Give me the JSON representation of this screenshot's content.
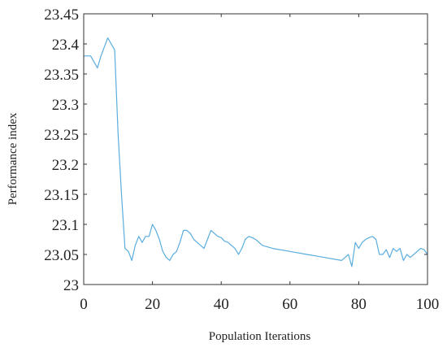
{
  "chart_data": {
    "type": "line",
    "title": "",
    "xlabel": "Population Iterations",
    "ylabel": "Performance index",
    "xlim": [
      0,
      100
    ],
    "ylim": [
      23,
      23.45
    ],
    "xticks": [
      0,
      20,
      40,
      60,
      80,
      100
    ],
    "yticks": [
      23,
      23.05,
      23.1,
      23.15,
      23.2,
      23.25,
      23.3,
      23.35,
      23.4,
      23.45
    ],
    "xtick_labels": [
      "0",
      "20",
      "40",
      "60",
      "80",
      "100"
    ],
    "ytick_labels": [
      "23",
      "23.05",
      "23.1",
      "23.15",
      "23.2",
      "23.25",
      "23.3",
      "23.35",
      "23.4",
      "23.45"
    ],
    "grid": false,
    "legend": false,
    "colors": {
      "line": "#5aaddf",
      "axis": "#333333"
    },
    "series": [
      {
        "x": [
          0,
          1,
          2,
          3,
          4,
          5,
          6,
          7,
          8,
          9,
          10,
          11,
          12,
          13,
          14,
          15,
          16,
          17,
          18,
          19,
          20,
          21,
          22,
          23,
          24,
          25,
          26,
          27,
          28,
          29,
          30,
          31,
          32,
          33,
          34,
          35,
          36,
          37,
          38,
          39,
          40,
          41,
          42,
          43,
          44,
          45,
          46,
          47,
          48,
          49,
          50,
          52,
          55,
          60,
          65,
          70,
          75,
          76,
          77,
          78,
          79,
          80,
          81,
          82,
          83,
          84,
          85,
          86,
          87,
          88,
          89,
          90,
          91,
          92,
          93,
          94,
          95,
          96,
          97,
          98,
          99,
          100
        ],
        "y": [
          23.38,
          23.38,
          23.38,
          23.37,
          23.36,
          23.38,
          23.395,
          23.41,
          23.4,
          23.39,
          23.25,
          23.15,
          23.06,
          23.055,
          23.04,
          23.065,
          23.08,
          23.07,
          23.08,
          23.08,
          23.1,
          23.09,
          23.075,
          23.055,
          23.045,
          23.04,
          23.05,
          23.055,
          23.07,
          23.09,
          23.09,
          23.085,
          23.075,
          23.07,
          23.065,
          23.06,
          23.075,
          23.09,
          23.085,
          23.08,
          23.078,
          23.072,
          23.07,
          23.065,
          23.06,
          23.05,
          23.06,
          23.075,
          23.08,
          23.078,
          23.075,
          23.065,
          23.06,
          23.055,
          23.05,
          23.045,
          23.04,
          23.045,
          23.05,
          23.03,
          23.07,
          23.06,
          23.07,
          23.075,
          23.078,
          23.08,
          23.075,
          23.05,
          23.05,
          23.058,
          23.045,
          23.06,
          23.055,
          23.06,
          23.04,
          23.05,
          23.045,
          23.05,
          23.055,
          23.06,
          23.058,
          23.05
        ]
      }
    ]
  }
}
